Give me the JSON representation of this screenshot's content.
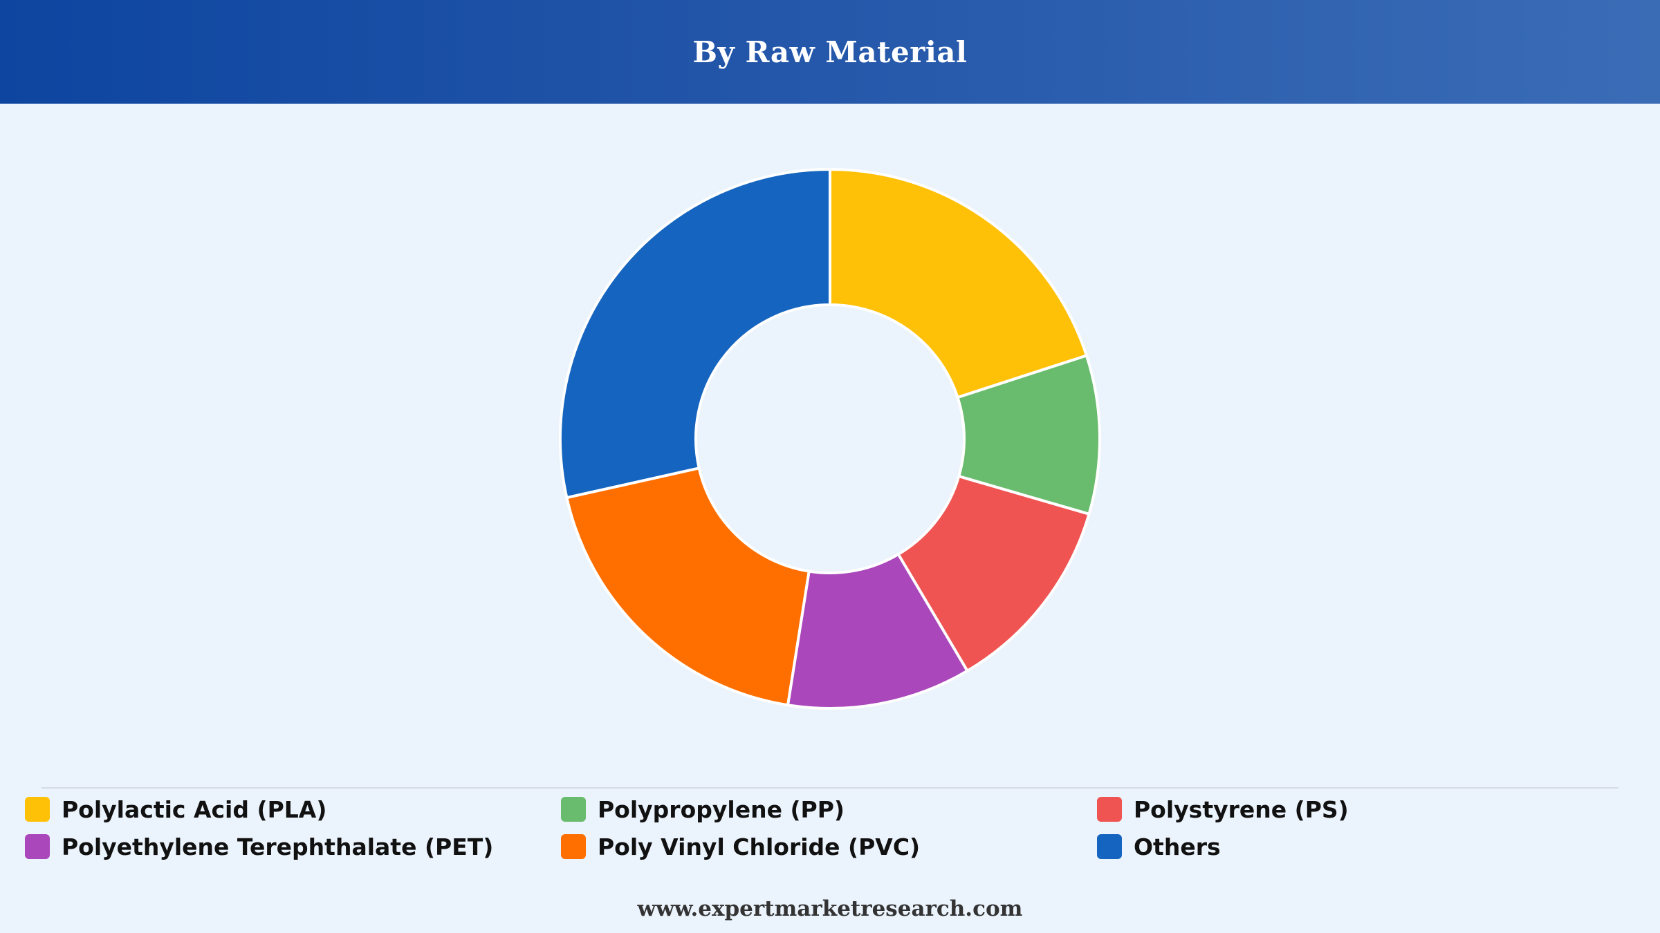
{
  "header": {
    "title": "By Raw Material"
  },
  "footer": {
    "text": "www.expertmarketresearch.com"
  },
  "chart_data": {
    "type": "pie",
    "variant": "donut",
    "title": "By Raw Material",
    "legend_position": "bottom",
    "slices": [
      {
        "name": "Polylactic Acid (PLA)",
        "value": 20,
        "color": "#ffc107"
      },
      {
        "name": "Polypropylene (PP)",
        "value": 9.5,
        "color": "#69bb6d"
      },
      {
        "name": "Polystyrene (PS)",
        "value": 12,
        "color": "#ef5452"
      },
      {
        "name": "Polyethylene Terephthalate (PET)",
        "value": 11,
        "color": "#aa47bb"
      },
      {
        "name": "Poly Vinyl Chloride (PVC)",
        "value": 19,
        "color": "#ff6f00"
      },
      {
        "name": "Others",
        "value": 28.5,
        "color": "#1565c0"
      }
    ]
  }
}
